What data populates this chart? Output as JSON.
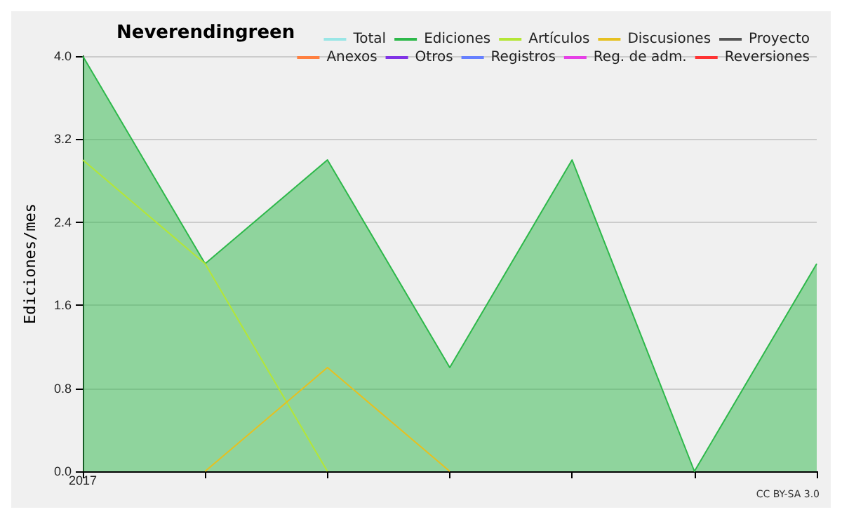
{
  "chart_data": {
    "type": "line",
    "title": "Neverendingreen",
    "ylabel": "Ediciones/mes",
    "categories": [
      "2017",
      null,
      null,
      null,
      null,
      null,
      null
    ],
    "ylim": [
      0,
      4
    ],
    "yticks": [
      {
        "value": 0,
        "label": "0.0"
      },
      {
        "value": 0.8,
        "label": "0.8"
      },
      {
        "value": 1.6,
        "label": "1.6"
      },
      {
        "value": 2.4,
        "label": "2.4"
      },
      {
        "value": 3.2,
        "label": "3.2"
      },
      {
        "value": 4,
        "label": "4.0"
      }
    ],
    "grid": "y",
    "legend": "top right",
    "marker": "none",
    "annotations": [
      "CC BY-SA 3.0"
    ],
    "series": [
      {
        "name": "Total",
        "color": "#99e6e6",
        "values": [
          null,
          null,
          null,
          null,
          null,
          null,
          null
        ]
      },
      {
        "name": "Ediciones",
        "color": "#2db84a",
        "type": "area",
        "values": [
          4,
          2,
          3,
          1,
          3,
          0,
          2
        ]
      },
      {
        "name": "Artículos",
        "color": "#b4e636",
        "values": [
          3,
          2,
          0,
          null,
          null,
          null,
          null
        ]
      },
      {
        "name": "Discusiones",
        "color": "#e6c020",
        "values": [
          null,
          0,
          1,
          0,
          null,
          null,
          null
        ]
      },
      {
        "name": "Proyecto",
        "color": "#555555",
        "values": [
          null,
          null,
          null,
          null,
          null,
          null,
          null
        ]
      },
      {
        "name": "Anexos",
        "color": "#ff8040",
        "values": [
          null,
          null,
          null,
          null,
          null,
          null,
          null
        ]
      },
      {
        "name": "Otros",
        "color": "#8033e6",
        "values": [
          null,
          null,
          null,
          null,
          null,
          null,
          null
        ]
      },
      {
        "name": "Registros",
        "color": "#6680ff",
        "values": [
          null,
          null,
          null,
          null,
          null,
          null,
          null
        ]
      },
      {
        "name": "Reg. de adm.",
        "color": "#e640e6",
        "values": [
          null,
          null,
          null,
          null,
          null,
          null,
          null
        ]
      },
      {
        "name": "Reversiones",
        "color": "#ff3333",
        "values": [
          null,
          null,
          null,
          null,
          null,
          null,
          null
        ]
      }
    ]
  }
}
